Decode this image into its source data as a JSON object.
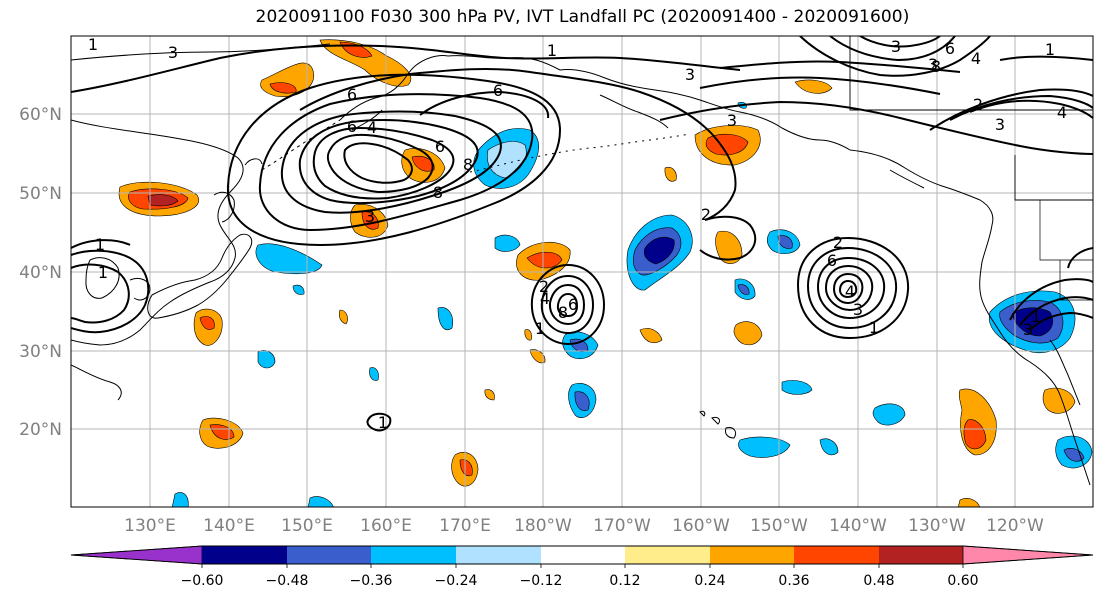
{
  "title": "2020091100 F030 300 hPa PV, IVT Landfall PC (2020091400 - 2020091600)",
  "lat_labels": [
    "60°N",
    "50°N",
    "40°N",
    "30°N",
    "20°N"
  ],
  "lon_labels": [
    "130°E",
    "140°E",
    "150°E",
    "160°E",
    "170°E",
    "180°W",
    "170°W",
    "160°W",
    "150°W",
    "140°W",
    "130°W",
    "120°W"
  ],
  "colorbar": {
    "tick_labels": [
      "−0.60",
      "−0.48",
      "−0.36",
      "−0.24",
      "−0.12",
      "0.12",
      "0.24",
      "0.36",
      "0.48",
      "0.60"
    ],
    "colors": [
      "#9932cc",
      "#00008b",
      "#3a5fcd",
      "#00bfff",
      "#b0e2ff",
      "#ffffff",
      "#ffec8b",
      "#ffa500",
      "#ff4500",
      "#b22222",
      "#ff88aa"
    ]
  },
  "contour_labels": [
    "1",
    "3",
    "6",
    "8",
    "3",
    "4",
    "6",
    "8",
    "1",
    "2",
    "2",
    "4",
    "6",
    "8",
    "6",
    "3",
    "1",
    "1",
    "1",
    "2",
    "6",
    "4",
    "3",
    "1",
    "3",
    "4",
    "1",
    "2",
    "1",
    "3",
    "3",
    "3",
    "6",
    "8",
    "4",
    "3",
    "6",
    "1"
  ]
}
